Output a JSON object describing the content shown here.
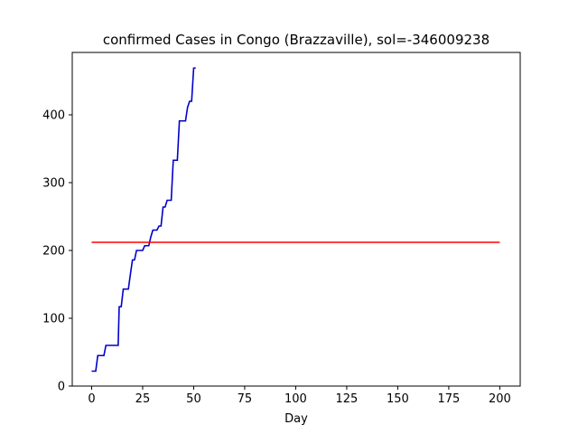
{
  "chart_data": {
    "type": "line",
    "title": "confirmed Cases in Congo (Brazzaville), sol=-346009238",
    "xlabel": "Day",
    "ylabel": "",
    "xlim": [
      -9.5,
      210
    ],
    "ylim": [
      0,
      492
    ],
    "xticks": [
      0,
      25,
      50,
      75,
      100,
      125,
      150,
      175,
      200
    ],
    "yticks": [
      0,
      100,
      200,
      300,
      400
    ],
    "grid": false,
    "legend": "none",
    "series": [
      {
        "color": "#0000cc",
        "points": [
          [
            0,
            22
          ],
          [
            2,
            22
          ],
          [
            3,
            45
          ],
          [
            6,
            45
          ],
          [
            7,
            60
          ],
          [
            13,
            60
          ],
          [
            13.5,
            117
          ],
          [
            14.5,
            117
          ],
          [
            15.5,
            143
          ],
          [
            18,
            143
          ],
          [
            19,
            165
          ],
          [
            20,
            186
          ],
          [
            21,
            186
          ],
          [
            22,
            200
          ],
          [
            25,
            200
          ],
          [
            26,
            207
          ],
          [
            28,
            207
          ],
          [
            29,
            220
          ],
          [
            30,
            230
          ],
          [
            32,
            230
          ],
          [
            33,
            236
          ],
          [
            34,
            236
          ],
          [
            35,
            264
          ],
          [
            36,
            264
          ],
          [
            37,
            274
          ],
          [
            39,
            274
          ],
          [
            40,
            333
          ],
          [
            42,
            333
          ],
          [
            43,
            391
          ],
          [
            46,
            391
          ],
          [
            47,
            411
          ],
          [
            48,
            420
          ],
          [
            49,
            420
          ],
          [
            50,
            469
          ],
          [
            51,
            469
          ]
        ]
      },
      {
        "color": "#ff0000",
        "points": [
          [
            0,
            212
          ],
          [
            200,
            212
          ]
        ]
      }
    ]
  }
}
